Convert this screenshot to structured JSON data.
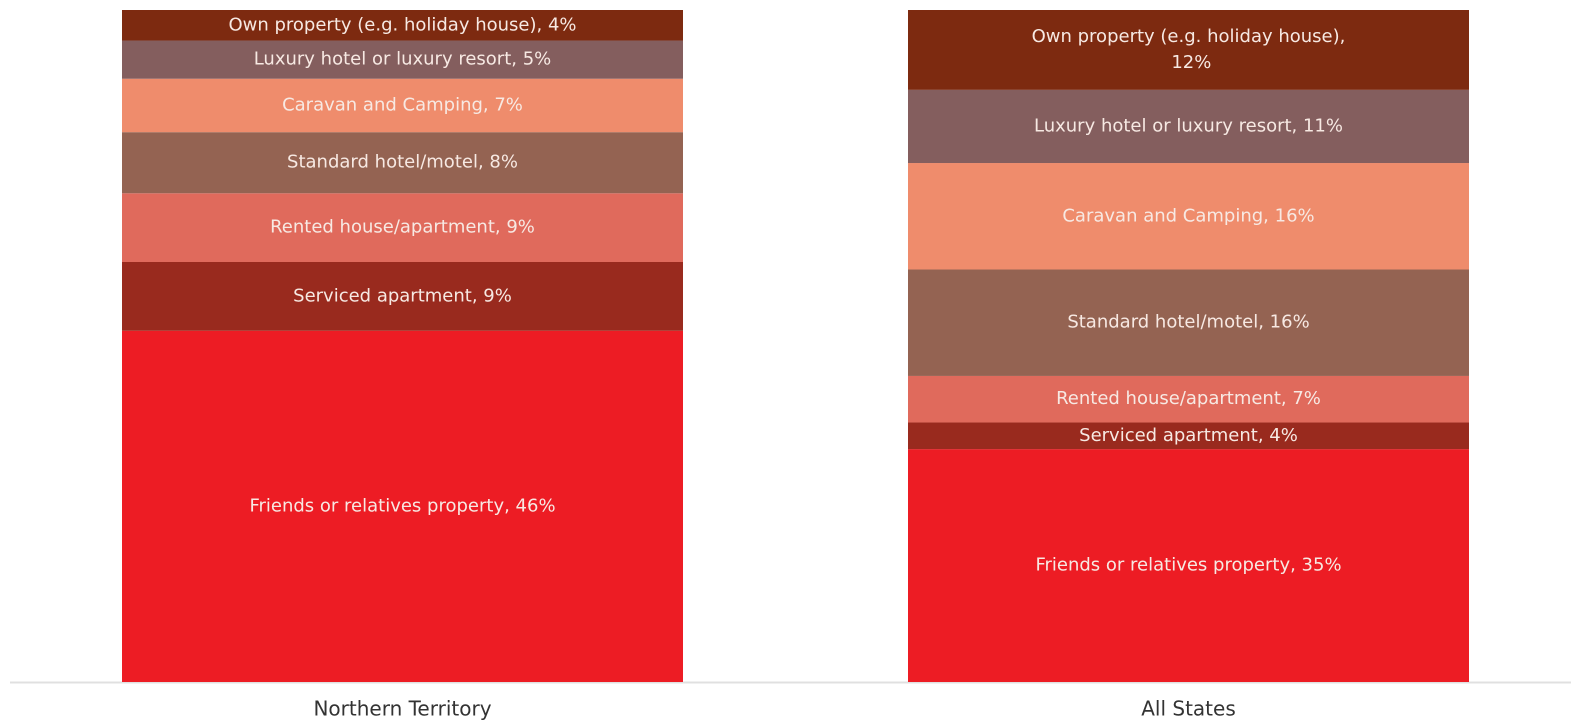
{
  "chart_data": {
    "type": "bar",
    "stacked": "percent",
    "categories": [
      "Northern Territory",
      "All States"
    ],
    "series": [
      {
        "name": "Friends or relatives property",
        "color": "#ed1c24",
        "values": [
          46,
          35
        ],
        "value_labels": [
          "Friends or relatives property, 46%",
          "Friends or relatives property, 35%"
        ]
      },
      {
        "name": "Serviced apartment",
        "color": "#992a1e",
        "values": [
          9,
          4
        ],
        "value_labels": [
          "Serviced apartment, 9%",
          "Serviced apartment, 4%"
        ]
      },
      {
        "name": "Rented house/apartment",
        "color": "#e06a5c",
        "values": [
          9,
          7
        ],
        "value_labels": [
          "Rented house/apartment, 9%",
          "Rented house/apartment, 7%"
        ]
      },
      {
        "name": "Standard hotel/motel",
        "color": "#946352",
        "values": [
          8,
          16
        ],
        "value_labels": [
          "Standard hotel/motel, 8%",
          "Standard hotel/motel, 16%"
        ]
      },
      {
        "name": "Caravan and Camping",
        "color": "#ef8c6c",
        "values": [
          7,
          16
        ],
        "value_labels": [
          "Caravan and Camping, 7%",
          "Caravan and Camping, 16%"
        ]
      },
      {
        "name": "Luxury hotel or luxury resort",
        "color": "#845e5e",
        "values": [
          5,
          11
        ],
        "value_labels": [
          "Luxury hotel or luxury resort, 5%",
          "Luxury hotel or luxury resort, 11%"
        ]
      },
      {
        "name": "Own property (e.g. holiday house)",
        "color": "#7d2a10",
        "values": [
          4,
          12
        ],
        "value_labels": [
          "Own property (e.g. holiday house), 4%",
          "Own property (e.g. holiday house), 12%"
        ]
      }
    ]
  }
}
